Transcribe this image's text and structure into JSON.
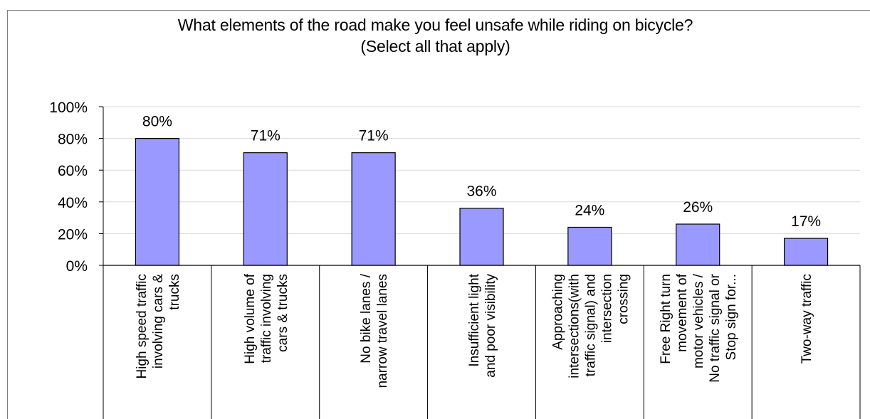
{
  "chart_data": {
    "type": "bar",
    "title": "What elements of the road make you feel unsafe while riding on bicycle?",
    "subtitle": "(Select all that apply)",
    "categories": [
      [
        "High speed traffic",
        "involving cars &",
        "trucks"
      ],
      [
        "High volume of",
        "traffic involving",
        "cars & trucks"
      ],
      [
        "No bike lanes /",
        "narrow travel lanes"
      ],
      [
        "Insufficient light",
        "and poor visibility"
      ],
      [
        "Approaching",
        "intersections(with",
        "traffic signal) and",
        "intersection",
        "crossing"
      ],
      [
        "Free Right turn",
        "movement of",
        "motor vehicles /",
        "No traffic signal or",
        "Stop sign for..."
      ],
      [
        "Two-way traffic"
      ]
    ],
    "values": [
      80,
      71,
      71,
      36,
      24,
      26,
      17
    ],
    "data_labels": [
      "80%",
      "71%",
      "71%",
      "36%",
      "24%",
      "26%",
      "17%"
    ],
    "ylim": [
      0,
      100
    ],
    "yticks": [
      "0%",
      "20%",
      "40%",
      "60%",
      "80%",
      "100%"
    ],
    "grid": true,
    "legend": "none",
    "bar_color": "#9999ff",
    "bar_border_color": "#000000",
    "grid_color": "#d9d9d9"
  }
}
